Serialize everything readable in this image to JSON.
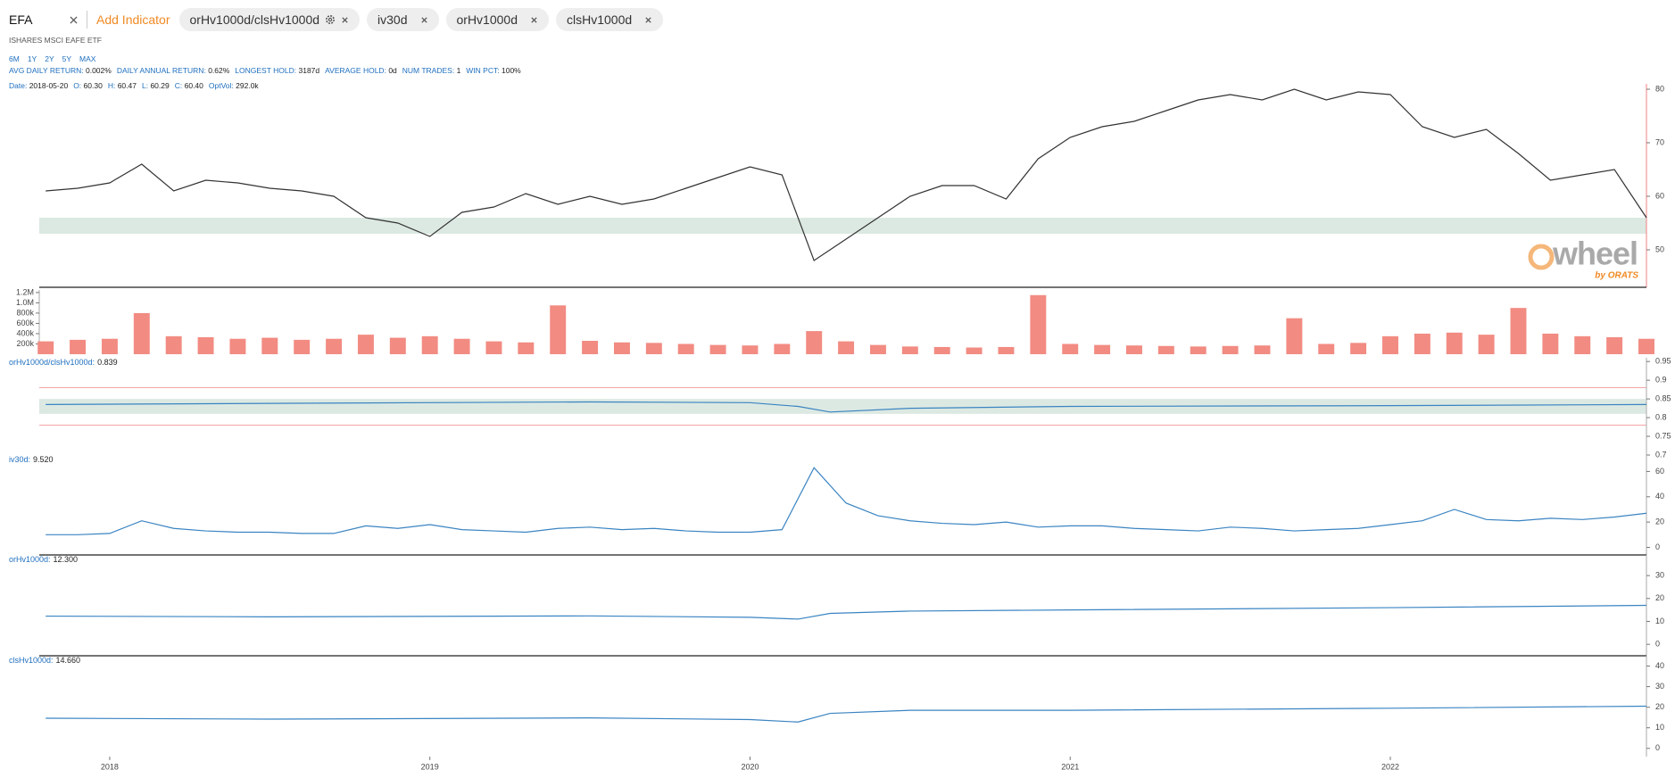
{
  "toolbar": {
    "ticker": "EFA",
    "add_indicator": "Add Indicator",
    "chips": [
      "orHv1000d/clsHv1000d",
      "iv30d",
      "orHv1000d",
      "clsHv1000d"
    ]
  },
  "subtitle": "ISHARES MSCI EAFE ETF",
  "periods": [
    "6M",
    "1Y",
    "2Y",
    "5Y",
    "MAX"
  ],
  "stats": [
    {
      "label": "AVG DAILY RETURN:",
      "value": "0.002%"
    },
    {
      "label": "DAILY ANNUAL RETURN:",
      "value": "0.62%"
    },
    {
      "label": "LONGEST HOLD:",
      "value": "3187d"
    },
    {
      "label": "AVERAGE HOLD:",
      "value": "0d"
    },
    {
      "label": "NUM TRADES:",
      "value": "1"
    },
    {
      "label": "WIN PCT:",
      "value": "100%"
    }
  ],
  "ohlc_readout": [
    {
      "label": "Date:",
      "value": "2018-05-20"
    },
    {
      "label": "O:",
      "value": "60.30"
    },
    {
      "label": "H:",
      "value": "60.47"
    },
    {
      "label": "L:",
      "value": "60.29"
    },
    {
      "label": "C:",
      "value": "60.40"
    },
    {
      "label": "OptVol:",
      "value": "292.0k"
    }
  ],
  "chart_data": [
    {
      "type": "line",
      "axis_color": "#f08080",
      "bottom_border": true,
      "x": [
        2017.8,
        2017.9,
        2018.0,
        2018.1,
        2018.2,
        2018.3,
        2018.4,
        2018.5,
        2018.6,
        2018.7,
        2018.8,
        2018.9,
        2019.0,
        2019.1,
        2019.2,
        2019.3,
        2019.4,
        2019.5,
        2019.6,
        2019.7,
        2019.8,
        2019.9,
        2020.0,
        2020.1,
        2020.2,
        2020.3,
        2020.4,
        2020.5,
        2020.6,
        2020.7,
        2020.8,
        2020.9,
        2021.0,
        2021.1,
        2021.2,
        2021.3,
        2021.4,
        2021.5,
        2021.6,
        2021.7,
        2021.8,
        2021.9,
        2022.0,
        2022.1,
        2022.2,
        2022.3,
        2022.4,
        2022.5,
        2022.6,
        2022.7,
        2022.8
      ],
      "series": [
        {
          "color": "#333333",
          "values": [
            61,
            61.5,
            62.5,
            66,
            61,
            63,
            62.5,
            61.5,
            61,
            60,
            56,
            55,
            52.5,
            57,
            58,
            60.5,
            58.5,
            60,
            58.5,
            59.5,
            61.5,
            63.5,
            65.5,
            64,
            48,
            52,
            56,
            60,
            62,
            62,
            59.5,
            67,
            71,
            73,
            74,
            76,
            78,
            79,
            78,
            80,
            78,
            79.5,
            79,
            73,
            71,
            72.5,
            68,
            63,
            64,
            65,
            56
          ]
        }
      ],
      "bands": [
        {
          "range": [
            53,
            56
          ],
          "color": "#dce9e2"
        }
      ],
      "xlim": [
        2017.78,
        2022.8
      ],
      "ylim": [
        43,
        81
      ],
      "yticks": [
        50,
        60,
        70,
        80
      ],
      "watermark": {
        "text": "wheel",
        "by": "by ORATS"
      }
    },
    {
      "type": "bar",
      "axis_side": "left",
      "x": [
        2017.8,
        2017.9,
        2018.0,
        2018.1,
        2018.2,
        2018.3,
        2018.4,
        2018.5,
        2018.6,
        2018.7,
        2018.8,
        2018.9,
        2019.0,
        2019.1,
        2019.2,
        2019.3,
        2019.4,
        2019.5,
        2019.6,
        2019.7,
        2019.8,
        2019.9,
        2020.0,
        2020.1,
        2020.2,
        2020.3,
        2020.4,
        2020.5,
        2020.6,
        2020.7,
        2020.8,
        2020.9,
        2021.0,
        2021.1,
        2021.2,
        2021.3,
        2021.4,
        2021.5,
        2021.6,
        2021.7,
        2021.8,
        2021.9,
        2022.0,
        2022.1,
        2022.2,
        2022.3,
        2022.4,
        2022.5,
        2022.6,
        2022.7,
        2022.8
      ],
      "series": [
        {
          "color": "#f28b82",
          "values": [
            250000,
            280000,
            300000,
            800000,
            350000,
            330000,
            300000,
            320000,
            280000,
            300000,
            380000,
            320000,
            350000,
            300000,
            250000,
            230000,
            950000,
            260000,
            230000,
            220000,
            200000,
            180000,
            170000,
            200000,
            450000,
            250000,
            180000,
            150000,
            140000,
            130000,
            140000,
            1150000,
            200000,
            180000,
            170000,
            160000,
            150000,
            160000,
            170000,
            700000,
            200000,
            220000,
            350000,
            400000,
            420000,
            380000,
            900000,
            400000,
            350000,
            330000,
            300000
          ]
        }
      ],
      "xlim": [
        2017.78,
        2022.8
      ],
      "ylim": [
        0,
        1250000
      ],
      "yticks": [
        {
          "value": 200000,
          "label": "200k"
        },
        {
          "value": 400000,
          "label": "400k"
        },
        {
          "value": 600000,
          "label": "600k"
        },
        {
          "value": 800000,
          "label": "800k"
        },
        {
          "value": 1000000,
          "label": "1.0M"
        },
        {
          "value": 1200000,
          "label": "1.2M"
        }
      ]
    },
    {
      "type": "line",
      "title": "orHv1000d/clsHv1000d:",
      "readout": "0.839",
      "x": [
        2017.8,
        2018.5,
        2019.5,
        2020.0,
        2020.15,
        2020.25,
        2020.5,
        2021.0,
        2022.0,
        2022.8
      ],
      "series": [
        {
          "color": "#3a84c2",
          "values": [
            0.835,
            0.838,
            0.842,
            0.84,
            0.83,
            0.815,
            0.825,
            0.83,
            0.832,
            0.835
          ]
        }
      ],
      "bands": [
        {
          "range": [
            0.81,
            0.85
          ],
          "color": "#dce9e2"
        }
      ],
      "ref_lines": [
        {
          "value": 0.88,
          "color": "#f4a6a6"
        },
        {
          "value": 0.78,
          "color": "#f4a6a6"
        }
      ],
      "xlim": [
        2017.78,
        2022.8
      ],
      "ylim": [
        0.7,
        0.96
      ],
      "yticks": [
        0.7,
        0.75,
        0.8,
        0.85,
        0.9,
        0.95
      ]
    },
    {
      "type": "line",
      "title": "iv30d:",
      "readout": "9.520",
      "bottom_border": true,
      "x": [
        2017.8,
        2017.9,
        2018.0,
        2018.1,
        2018.2,
        2018.3,
        2018.4,
        2018.5,
        2018.6,
        2018.7,
        2018.8,
        2018.9,
        2019.0,
        2019.1,
        2019.2,
        2019.3,
        2019.4,
        2019.5,
        2019.6,
        2019.7,
        2019.8,
        2019.9,
        2020.0,
        2020.1,
        2020.2,
        2020.3,
        2020.4,
        2020.5,
        2020.6,
        2020.7,
        2020.8,
        2020.9,
        2021.0,
        2021.1,
        2021.2,
        2021.3,
        2021.4,
        2021.5,
        2021.6,
        2021.7,
        2021.8,
        2021.9,
        2022.0,
        2022.1,
        2022.2,
        2022.3,
        2022.4,
        2022.5,
        2022.6,
        2022.7,
        2022.8
      ],
      "series": [
        {
          "color": "#3a84c2",
          "values": [
            10,
            10,
            11,
            21,
            15,
            13,
            12,
            12,
            11,
            11,
            17,
            15,
            18,
            14,
            13,
            12,
            15,
            16,
            14,
            15,
            13,
            12,
            12,
            14,
            63,
            35,
            25,
            21,
            19,
            18,
            20,
            16,
            17,
            17,
            15,
            14,
            13,
            16,
            15,
            13,
            14,
            15,
            18,
            21,
            30,
            22,
            21,
            23,
            22,
            24,
            27
          ]
        }
      ],
      "xlim": [
        2017.78,
        2022.8
      ],
      "ylim": [
        -6,
        73
      ],
      "yticks": [
        0,
        20,
        40,
        60
      ]
    },
    {
      "type": "line",
      "title": "orHv1000d:",
      "readout": "12.300",
      "bottom_border": true,
      "x": [
        2017.8,
        2018.5,
        2019.5,
        2020.0,
        2020.15,
        2020.25,
        2020.5,
        2021.0,
        2022.0,
        2022.8
      ],
      "series": [
        {
          "color": "#3a84c2",
          "values": [
            12.3,
            12,
            12.4,
            11.8,
            11,
            13.5,
            14.5,
            15,
            16,
            17
          ]
        }
      ],
      "xlim": [
        2017.78,
        2022.8
      ],
      "ylim": [
        -5,
        39
      ],
      "yticks": [
        0,
        10,
        20,
        30
      ]
    },
    {
      "type": "line",
      "title": "clsHv1000d:",
      "readout": "14.660",
      "x": [
        2017.8,
        2018.5,
        2019.5,
        2020.0,
        2020.15,
        2020.25,
        2020.5,
        2021.0,
        2022.0,
        2022.8
      ],
      "series": [
        {
          "color": "#3a84c2",
          "values": [
            14.66,
            14.2,
            14.8,
            14,
            12.8,
            17,
            18.5,
            18.5,
            19.5,
            20.5
          ]
        }
      ],
      "xlim": [
        2017.78,
        2022.8
      ],
      "ylim": [
        -4,
        45
      ],
      "yticks": [
        0,
        10,
        20,
        30,
        40
      ],
      "xticks": [
        2018,
        2019,
        2020,
        2021,
        2022
      ]
    }
  ]
}
